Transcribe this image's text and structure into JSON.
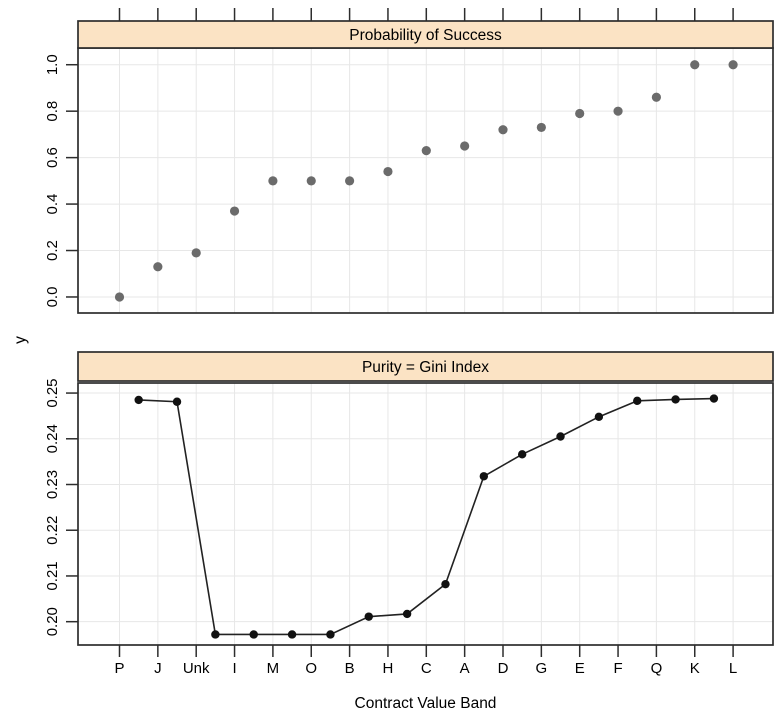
{
  "figure": {
    "xlabel": "Contract Value Band",
    "ylabel": "y",
    "colors": {
      "background": "#ffffff",
      "strip_bg": "#fbe3c4",
      "strip_border": "#2d2d2d",
      "panel_border": "#2d2d2d",
      "grid": "#e7e7e7",
      "tick": "#2d2d2d",
      "top_point": "#6b6b6b",
      "bottom_point": "#111111",
      "bottom_line": "#222222"
    }
  },
  "chart_data": [
    {
      "type": "scatter",
      "panel": "top",
      "title": "Probability of Success",
      "categories": [
        "P",
        "J",
        "Unk",
        "I",
        "M",
        "O",
        "B",
        "H",
        "C",
        "A",
        "D",
        "G",
        "E",
        "F",
        "Q",
        "K",
        "L"
      ],
      "values": [
        0.0,
        0.13,
        0.19,
        0.37,
        0.5,
        0.5,
        0.5,
        0.54,
        0.63,
        0.65,
        0.72,
        0.73,
        0.79,
        0.8,
        0.86,
        1.0,
        1.0
      ],
      "ylim": [
        -0.069,
        1.072
      ],
      "yticks": [
        "0.0",
        "0.2",
        "0.4",
        "0.6",
        "0.8",
        "1.0"
      ],
      "grid": true,
      "legend": "none",
      "point_style": "filled-circle-gray"
    },
    {
      "type": "line",
      "panel": "bottom",
      "title": "Purity = Gini Index",
      "categories": [
        "P",
        "J",
        "Unk",
        "I",
        "M",
        "O",
        "B",
        "H",
        "C",
        "A",
        "D",
        "G",
        "E",
        "F",
        "Q",
        "K",
        "L"
      ],
      "x_positions": "midpoints-between-adjacent-categories",
      "values": [
        0.2485,
        0.2481,
        0.1972,
        0.1972,
        0.1972,
        0.1972,
        0.2011,
        0.2017,
        0.2082,
        0.2318,
        0.2366,
        0.2405,
        0.2448,
        0.2483,
        0.2486,
        0.2488
      ],
      "ylim": [
        0.1949,
        0.2522
      ],
      "yticks": [
        "0.20",
        "0.21",
        "0.22",
        "0.23",
        "0.24",
        "0.25"
      ],
      "grid": true,
      "legend": "none",
      "point_style": "filled-circle-black"
    }
  ]
}
